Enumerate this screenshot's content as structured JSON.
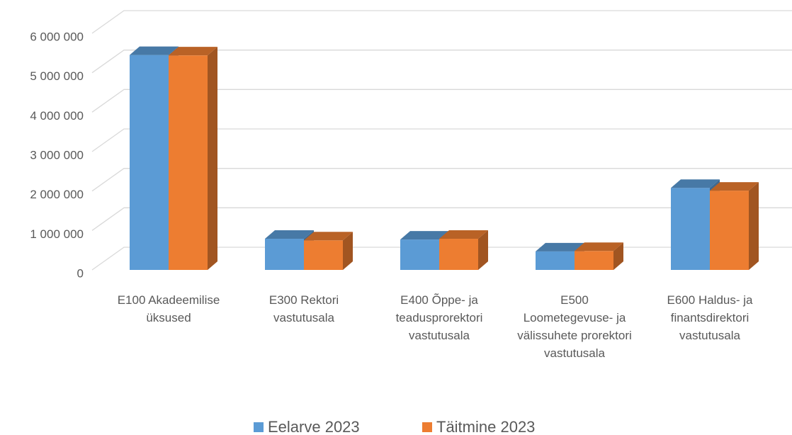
{
  "chart_data": {
    "type": "bar3d",
    "categories": [
      "E100 Akadeemilise üksused",
      "E300 Rektori vastutusala",
      "E400 Õppe- ja teadusprorektori vastutusala",
      "E500 Loometegevuse- ja välissuhete prorektori vastutusala",
      "E600 Haldus- ja finantsdirektori vastutusala"
    ],
    "series": [
      {
        "name": "Eelarve 2023",
        "color": "#5b9bd5",
        "values": [
          5450000,
          790000,
          770000,
          470000,
          2080000
        ]
      },
      {
        "name": "Täitmine 2023",
        "color": "#ed7d31",
        "values": [
          5440000,
          750000,
          790000,
          480000,
          2010000
        ]
      }
    ],
    "ylim": [
      0,
      6000000
    ],
    "yticks": [
      0,
      {
        "value": 1000000,
        "label": "1 000 000"
      },
      {
        "value": 2000000,
        "label": "2 000 000"
      },
      {
        "value": 3000000,
        "label": "3 000 000"
      },
      {
        "value": 4000000,
        "label": "4 000 000"
      },
      {
        "value": 5000000,
        "label": "5 000 000"
      },
      {
        "value": 6000000,
        "label": "6 000 000"
      }
    ],
    "grid": true,
    "legend": "bottom"
  }
}
